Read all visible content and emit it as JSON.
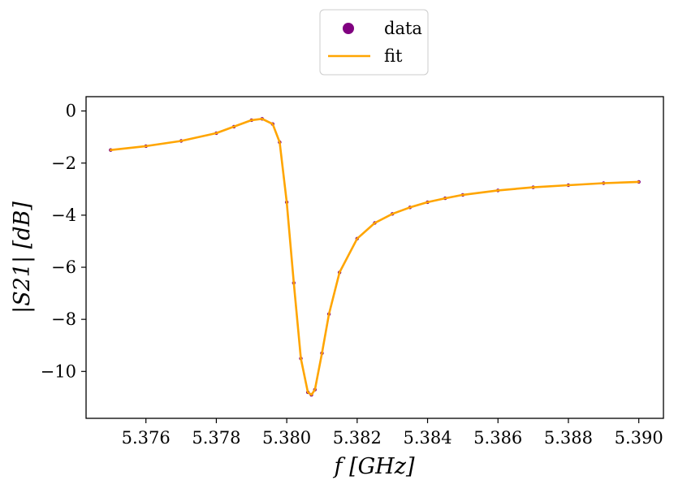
{
  "chart_data": {
    "type": "scatter",
    "xlabel": "f [GHz]",
    "ylabel": "|S21| [dB]",
    "xlim": [
      5.3743,
      5.3907
    ],
    "ylim": [
      -11.8,
      0.55
    ],
    "x_ticks": [
      5.376,
      5.378,
      5.38,
      5.382,
      5.384,
      5.386,
      5.388,
      5.39
    ],
    "x_tick_labels": [
      "5.376",
      "5.378",
      "5.380",
      "5.382",
      "5.384",
      "5.386",
      "5.388",
      "5.390"
    ],
    "y_ticks": [
      0,
      -2,
      -4,
      -6,
      -8,
      -10
    ],
    "y_tick_labels": [
      "0",
      "−2",
      "−4",
      "−6",
      "−8",
      "−10"
    ],
    "grid": false,
    "legend": {
      "position": "top-center-outside"
    },
    "series": [
      {
        "name": "data",
        "kind": "scatter",
        "color": "#800080",
        "x": [
          5.375,
          5.376,
          5.377,
          5.378,
          5.3785,
          5.379,
          5.3793,
          5.3796,
          5.3798,
          5.38,
          5.3802,
          5.3804,
          5.3806,
          5.3807,
          5.3808,
          5.381,
          5.3812,
          5.3815,
          5.382,
          5.3825,
          5.383,
          5.3835,
          5.384,
          5.3845,
          5.385,
          5.386,
          5.387,
          5.388,
          5.389,
          5.39
        ],
        "y": [
          -1.5,
          -1.35,
          -1.15,
          -0.85,
          -0.6,
          -0.35,
          -0.3,
          -0.5,
          -1.2,
          -3.5,
          -6.6,
          -9.5,
          -10.8,
          -10.9,
          -10.7,
          -9.3,
          -7.8,
          -6.2,
          -4.9,
          -4.3,
          -3.95,
          -3.7,
          -3.5,
          -3.35,
          -3.22,
          -3.05,
          -2.93,
          -2.85,
          -2.77,
          -2.72
        ]
      },
      {
        "name": "fit",
        "kind": "line",
        "color": "#ffa500",
        "x": [
          5.375,
          5.376,
          5.377,
          5.378,
          5.3785,
          5.379,
          5.3793,
          5.3796,
          5.3798,
          5.38,
          5.3802,
          5.3804,
          5.3806,
          5.3807,
          5.3808,
          5.381,
          5.3812,
          5.3815,
          5.382,
          5.3825,
          5.383,
          5.3835,
          5.384,
          5.3845,
          5.385,
          5.386,
          5.387,
          5.388,
          5.389,
          5.39
        ],
        "y": [
          -1.5,
          -1.35,
          -1.15,
          -0.85,
          -0.6,
          -0.35,
          -0.3,
          -0.5,
          -1.2,
          -3.5,
          -6.6,
          -9.5,
          -10.8,
          -10.9,
          -10.7,
          -9.3,
          -7.8,
          -6.2,
          -4.9,
          -4.3,
          -3.95,
          -3.7,
          -3.5,
          -3.35,
          -3.22,
          -3.05,
          -2.93,
          -2.85,
          -2.77,
          -2.72
        ]
      }
    ]
  }
}
